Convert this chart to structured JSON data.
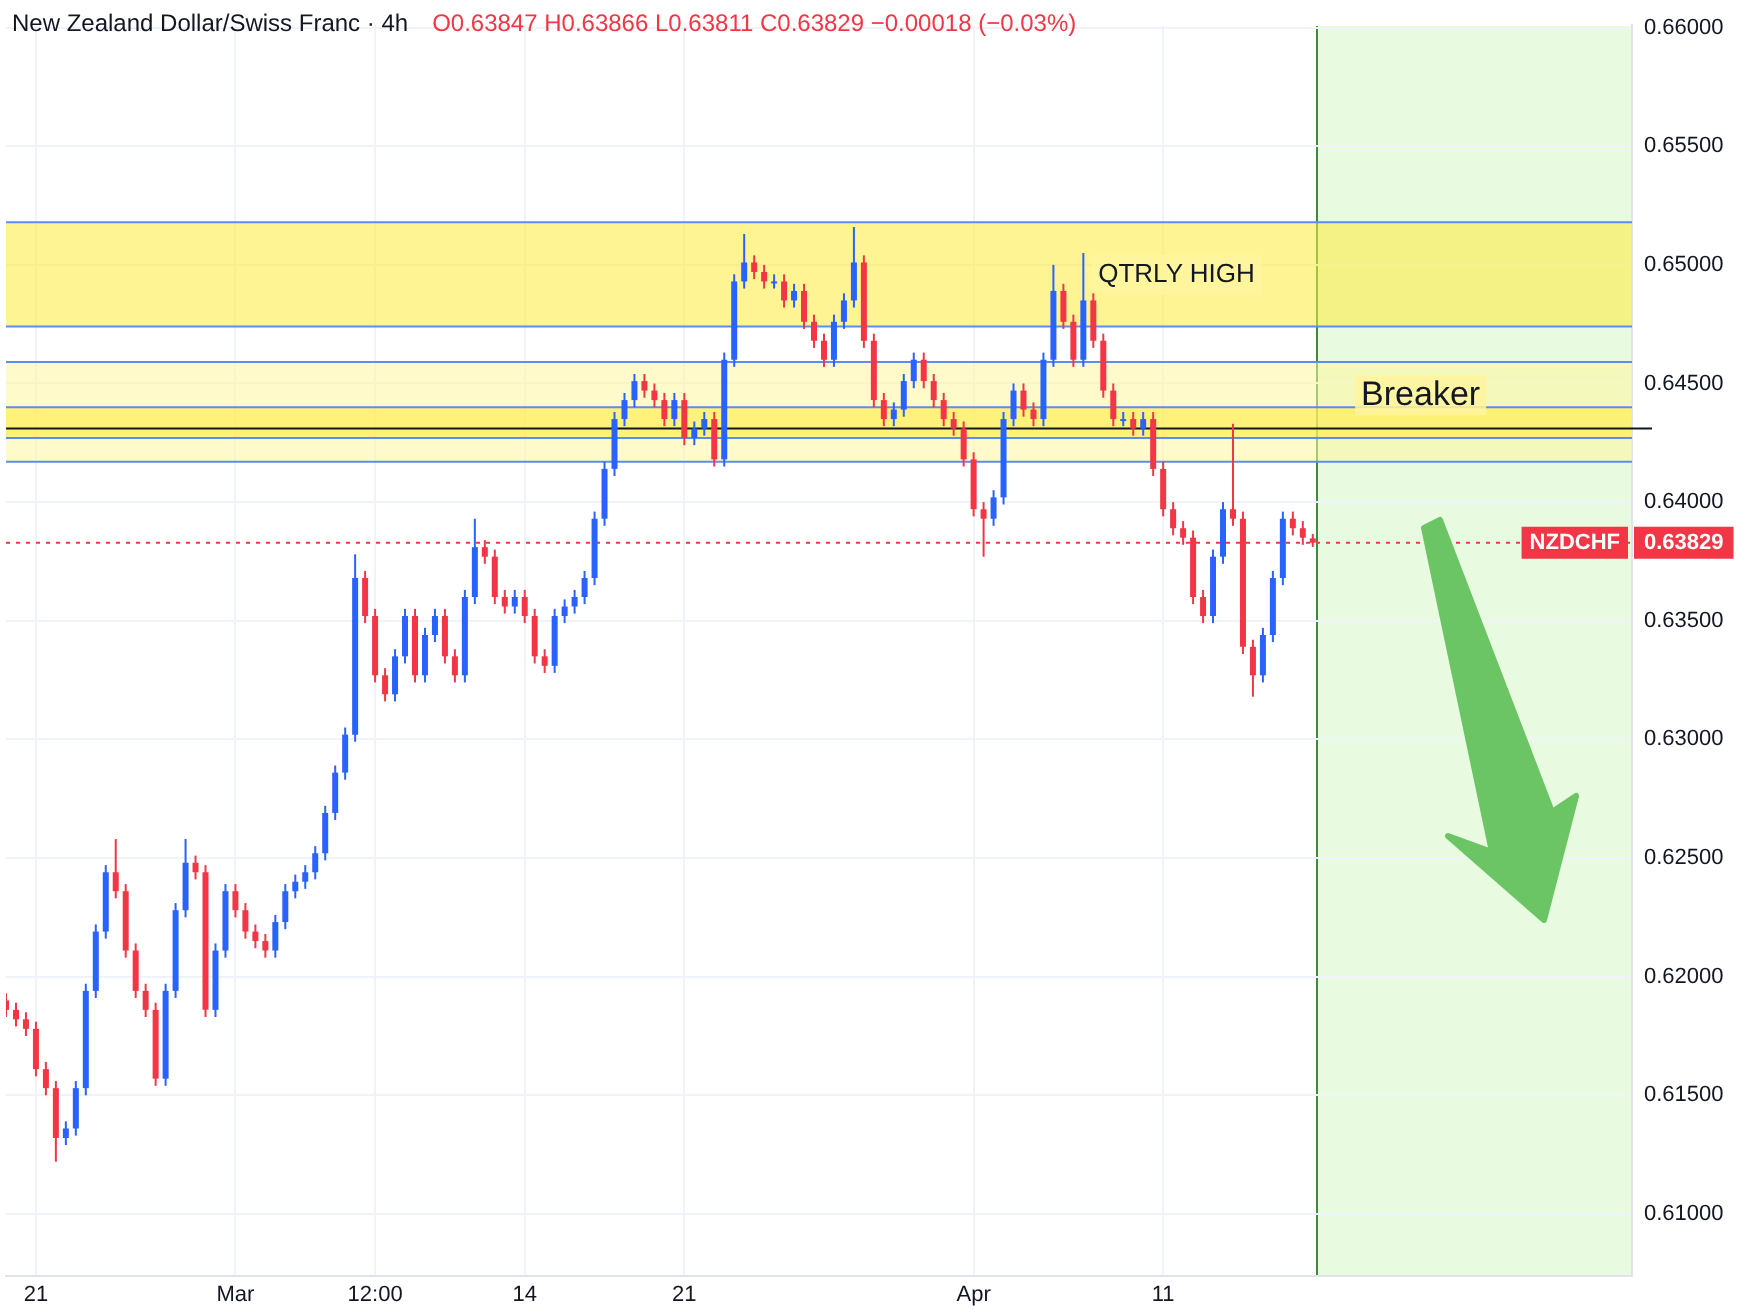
{
  "chart_data": {
    "type": "candlestick",
    "title": "New Zealand Dollar/Swiss Franc · 4h",
    "subtitle": "O0.63847 H0.63866 L0.63811 C0.63829 −0.00018 (−0.03%)",
    "categories": [
      null,
      null,
      null,
      "21",
      null,
      null,
      null,
      null,
      null,
      null,
      null,
      null,
      null,
      null,
      null,
      null,
      null,
      null,
      null,
      null,
      null,
      null,
      null,
      "Mar",
      null,
      null,
      null,
      null,
      null,
      null,
      null,
      null,
      null,
      null,
      null,
      null,
      null,
      "12:00",
      null,
      null,
      null,
      null,
      null,
      null,
      null,
      null,
      null,
      null,
      null,
      null,
      null,
      null,
      "14",
      null,
      null,
      null,
      null,
      null,
      null,
      null,
      null,
      null,
      null,
      null,
      null,
      null,
      null,
      null,
      "21",
      null,
      null,
      null,
      null,
      null,
      null,
      null,
      null,
      null,
      null,
      null,
      null,
      null,
      null,
      null,
      null,
      null,
      null,
      null,
      null,
      null,
      null,
      null,
      null,
      null,
      null,
      null,
      null,
      "Apr",
      null,
      null,
      null,
      null,
      null,
      null,
      null,
      null,
      null,
      null,
      null,
      null,
      null,
      null,
      null,
      null,
      null,
      null,
      "11",
      null,
      null,
      null,
      null,
      null,
      null,
      null,
      null,
      null,
      null,
      null,
      null,
      null,
      null,
      null,
      null,
      null,
      null,
      null,
      null,
      null,
      null,
      null,
      null,
      null,
      null,
      null,
      null,
      null,
      null,
      null,
      null,
      null,
      null,
      null,
      null,
      null,
      null,
      null,
      null,
      null,
      null,
      null,
      null,
      null,
      null,
      null
    ],
    "ohlc": [
      [
        0.619,
        0.6193,
        0.6183,
        0.6186
      ],
      [
        0.6186,
        0.6189,
        0.6179,
        0.6182
      ],
      [
        0.6182,
        0.6185,
        0.6175,
        0.6178
      ],
      [
        0.6178,
        0.6181,
        0.6158,
        0.6161
      ],
      [
        0.6161,
        0.6164,
        0.615,
        0.6153
      ],
      [
        0.6153,
        0.6156,
        0.6122,
        0.6132
      ],
      [
        0.6132,
        0.6139,
        0.6129,
        0.6136
      ],
      [
        0.6136,
        0.6156,
        0.6133,
        0.6153
      ],
      [
        0.6153,
        0.6197,
        0.615,
        0.6194
      ],
      [
        0.6194,
        0.6222,
        0.6191,
        0.6219
      ],
      [
        0.6219,
        0.6247,
        0.6216,
        0.6244
      ],
      [
        0.6244,
        0.6258,
        0.6233,
        0.6236
      ],
      [
        0.6236,
        0.6239,
        0.6208,
        0.6211
      ],
      [
        0.6211,
        0.6214,
        0.6191,
        0.6194
      ],
      [
        0.6194,
        0.6197,
        0.6183,
        0.6186
      ],
      [
        0.6186,
        0.6189,
        0.6154,
        0.6157
      ],
      [
        0.6157,
        0.6197,
        0.6154,
        0.6194
      ],
      [
        0.6194,
        0.6231,
        0.6191,
        0.6228
      ],
      [
        0.6228,
        0.6258,
        0.6225,
        0.6248
      ],
      [
        0.6248,
        0.6251,
        0.6241,
        0.6244
      ],
      [
        0.6244,
        0.6247,
        0.6183,
        0.6186
      ],
      [
        0.6186,
        0.6214,
        0.6183,
        0.6211
      ],
      [
        0.6211,
        0.6239,
        0.6208,
        0.6236
      ],
      [
        0.6236,
        0.6239,
        0.6225,
        0.6228
      ],
      [
        0.6228,
        0.6231,
        0.6216,
        0.6219
      ],
      [
        0.6219,
        0.6222,
        0.6212,
        0.6215
      ],
      [
        0.6215,
        0.6218,
        0.6208,
        0.6211
      ],
      [
        0.6211,
        0.6226,
        0.6208,
        0.6223
      ],
      [
        0.6223,
        0.6239,
        0.622,
        0.6236
      ],
      [
        0.6236,
        0.6243,
        0.6233,
        0.624
      ],
      [
        0.624,
        0.6247,
        0.6237,
        0.6244
      ],
      [
        0.6244,
        0.6255,
        0.6241,
        0.6252
      ],
      [
        0.6252,
        0.6272,
        0.6249,
        0.6269
      ],
      [
        0.6269,
        0.6289,
        0.6266,
        0.6286
      ],
      [
        0.6286,
        0.6305,
        0.6283,
        0.6302
      ],
      [
        0.6302,
        0.6378,
        0.6299,
        0.6368
      ],
      [
        0.6368,
        0.6371,
        0.6349,
        0.6352
      ],
      [
        0.6352,
        0.6355,
        0.6324,
        0.6327
      ],
      [
        0.6327,
        0.633,
        0.6316,
        0.6319
      ],
      [
        0.6319,
        0.6338,
        0.6316,
        0.6335
      ],
      [
        0.6335,
        0.6355,
        0.6332,
        0.6352
      ],
      [
        0.6352,
        0.6355,
        0.6324,
        0.6327
      ],
      [
        0.6327,
        0.6347,
        0.6324,
        0.6344
      ],
      [
        0.6344,
        0.6355,
        0.6341,
        0.6352
      ],
      [
        0.6352,
        0.6355,
        0.6332,
        0.6335
      ],
      [
        0.6335,
        0.6338,
        0.6324,
        0.6327
      ],
      [
        0.6327,
        0.6363,
        0.6324,
        0.636
      ],
      [
        0.636,
        0.6393,
        0.6357,
        0.6381
      ],
      [
        0.6381,
        0.6384,
        0.6374,
        0.6377
      ],
      [
        0.6377,
        0.638,
        0.6357,
        0.636
      ],
      [
        0.636,
        0.6363,
        0.6353,
        0.6356
      ],
      [
        0.6356,
        0.6363,
        0.6353,
        0.636
      ],
      [
        0.636,
        0.6363,
        0.6349,
        0.6352
      ],
      [
        0.6352,
        0.6355,
        0.6332,
        0.6335
      ],
      [
        0.6335,
        0.6338,
        0.6328,
        0.6331
      ],
      [
        0.6331,
        0.6355,
        0.6328,
        0.6352
      ],
      [
        0.6352,
        0.6359,
        0.6349,
        0.6356
      ],
      [
        0.6356,
        0.6363,
        0.6353,
        0.636
      ],
      [
        0.636,
        0.6371,
        0.6357,
        0.6368
      ],
      [
        0.6368,
        0.6396,
        0.6365,
        0.6393
      ],
      [
        0.6393,
        0.6417,
        0.639,
        0.6414
      ],
      [
        0.6414,
        0.6438,
        0.6411,
        0.6435
      ],
      [
        0.6435,
        0.6446,
        0.6432,
        0.6443
      ],
      [
        0.6443,
        0.6454,
        0.644,
        0.6451
      ],
      [
        0.6451,
        0.6454,
        0.6444,
        0.6447
      ],
      [
        0.6447,
        0.645,
        0.644,
        0.6443
      ],
      [
        0.6443,
        0.6446,
        0.6432,
        0.6435
      ],
      [
        0.6435,
        0.6446,
        0.6432,
        0.6443
      ],
      [
        0.6443,
        0.6446,
        0.6424,
        0.6427
      ],
      [
        0.6427,
        0.6434,
        0.6424,
        0.6431
      ],
      [
        0.6431,
        0.6438,
        0.6428,
        0.6435
      ],
      [
        0.6435,
        0.6438,
        0.6415,
        0.6418
      ],
      [
        0.6418,
        0.6463,
        0.6415,
        0.646
      ],
      [
        0.646,
        0.6496,
        0.6457,
        0.6493
      ],
      [
        0.6493,
        0.6513,
        0.649,
        0.6501
      ],
      [
        0.6501,
        0.6504,
        0.6494,
        0.6497
      ],
      [
        0.6497,
        0.65,
        0.649,
        0.6493
      ],
      [
        0.6493,
        0.6496,
        0.649,
        0.6493
      ],
      [
        0.6493,
        0.6496,
        0.6482,
        0.6485
      ],
      [
        0.6485,
        0.6492,
        0.6482,
        0.6489
      ],
      [
        0.6489,
        0.6492,
        0.6473,
        0.6476
      ],
      [
        0.6476,
        0.6479,
        0.6465,
        0.6468
      ],
      [
        0.6468,
        0.6471,
        0.6457,
        0.646
      ],
      [
        0.646,
        0.6479,
        0.6457,
        0.6476
      ],
      [
        0.6476,
        0.6488,
        0.6473,
        0.6485
      ],
      [
        0.6485,
        0.6516,
        0.6482,
        0.6501
      ],
      [
        0.6501,
        0.6504,
        0.6465,
        0.6468
      ],
      [
        0.6468,
        0.6471,
        0.644,
        0.6443
      ],
      [
        0.6443,
        0.6446,
        0.6432,
        0.6435
      ],
      [
        0.6435,
        0.6442,
        0.6432,
        0.6439
      ],
      [
        0.6439,
        0.6454,
        0.6436,
        0.6451
      ],
      [
        0.6451,
        0.6463,
        0.6448,
        0.646
      ],
      [
        0.646,
        0.6463,
        0.6448,
        0.6451
      ],
      [
        0.6451,
        0.6454,
        0.644,
        0.6443
      ],
      [
        0.6443,
        0.6446,
        0.6432,
        0.6435
      ],
      [
        0.6435,
        0.6438,
        0.6428,
        0.6431
      ],
      [
        0.6431,
        0.6434,
        0.6415,
        0.6418
      ],
      [
        0.6418,
        0.6421,
        0.6394,
        0.6397
      ],
      [
        0.6397,
        0.64,
        0.6377,
        0.6393
      ],
      [
        0.6393,
        0.6405,
        0.639,
        0.6402
      ],
      [
        0.6402,
        0.6438,
        0.6399,
        0.6435
      ],
      [
        0.6435,
        0.645,
        0.6432,
        0.6447
      ],
      [
        0.6447,
        0.645,
        0.6436,
        0.6439
      ],
      [
        0.6439,
        0.6442,
        0.6432,
        0.6435
      ],
      [
        0.6435,
        0.6463,
        0.6432,
        0.646
      ],
      [
        0.646,
        0.65,
        0.6457,
        0.6489
      ],
      [
        0.6489,
        0.6492,
        0.6473,
        0.6476
      ],
      [
        0.6476,
        0.6479,
        0.6457,
        0.646
      ],
      [
        0.646,
        0.6505,
        0.6457,
        0.6485
      ],
      [
        0.6485,
        0.6488,
        0.6465,
        0.6468
      ],
      [
        0.6468,
        0.6471,
        0.6444,
        0.6447
      ],
      [
        0.6447,
        0.645,
        0.6432,
        0.6435
      ],
      [
        0.6435,
        0.6438,
        0.6432,
        0.6435
      ],
      [
        0.6435,
        0.6438,
        0.6428,
        0.6431
      ],
      [
        0.6431,
        0.6438,
        0.6428,
        0.6435
      ],
      [
        0.6435,
        0.6438,
        0.6411,
        0.6414
      ],
      [
        0.6414,
        0.6417,
        0.6394,
        0.6397
      ],
      [
        0.6397,
        0.64,
        0.6386,
        0.6389
      ],
      [
        0.6389,
        0.6392,
        0.6382,
        0.6385
      ],
      [
        0.6385,
        0.6388,
        0.6357,
        0.636
      ],
      [
        0.636,
        0.6363,
        0.6349,
        0.6352
      ],
      [
        0.6352,
        0.638,
        0.6349,
        0.6377
      ],
      [
        0.6377,
        0.64,
        0.6374,
        0.6397
      ],
      [
        0.6397,
        0.6433,
        0.639,
        0.6393
      ],
      [
        0.6393,
        0.6396,
        0.6336,
        0.6339
      ],
      [
        0.6339,
        0.6342,
        0.6318,
        0.6327
      ],
      [
        0.6327,
        0.6347,
        0.6324,
        0.6344
      ],
      [
        0.6344,
        0.6371,
        0.6341,
        0.6368
      ],
      [
        0.6368,
        0.6396,
        0.6365,
        0.6393
      ],
      [
        0.6393,
        0.6396,
        0.6386,
        0.6389
      ],
      [
        0.6389,
        0.6392,
        0.6382,
        0.6385
      ],
      [
        0.63847,
        0.63866,
        0.63811,
        0.63829
      ],
      null,
      null,
      null,
      null,
      null,
      null,
      null,
      null,
      null,
      null,
      null,
      null,
      null,
      null,
      null,
      null,
      null,
      null,
      null,
      null,
      null,
      null,
      null,
      null,
      null,
      null,
      null,
      null,
      null,
      null,
      null,
      null
    ],
    "ylim": [
      0.6074,
      0.6601
    ],
    "yticks": [
      {
        "value": 0.61,
        "label": "0.61000"
      },
      {
        "value": 0.615,
        "label": "0.61500"
      },
      {
        "value": 0.62,
        "label": "0.62000"
      },
      {
        "value": 0.625,
        "label": "0.62500"
      },
      {
        "value": 0.63,
        "label": "0.63000"
      },
      {
        "value": 0.635,
        "label": "0.63500"
      },
      {
        "value": 0.63829,
        "label": "0.63829"
      },
      {
        "value": 0.64,
        "label": "0.64000"
      },
      {
        "value": 0.645,
        "label": "0.64500"
      },
      {
        "value": 0.65,
        "label": "0.65000"
      },
      {
        "value": 0.655,
        "label": "0.65500"
      },
      {
        "value": 0.66,
        "label": "0.66000"
      }
    ],
    "grid": true,
    "bands": [
      {
        "axis": "y",
        "from": 0.6417,
        "to": 0.6459,
        "color": "#fff59d"
      },
      {
        "axis": "y",
        "from": 0.6474,
        "to": 0.6518,
        "color": "#ffeb3b"
      },
      {
        "axis": "y",
        "from": 0.6427,
        "to": 0.644,
        "color": "#ffeb3b"
      }
    ],
    "ref_lines": [
      {
        "axis": "y",
        "value": 0.6431,
        "color": "#131722"
      },
      {
        "axis": "y",
        "value": 0.63829,
        "label": "NZDCHF",
        "color": "#f23645",
        "line_style": "dotted"
      }
    ],
    "annotations": [
      "QTRLY HIGH",
      "Breaker"
    ]
  }
}
